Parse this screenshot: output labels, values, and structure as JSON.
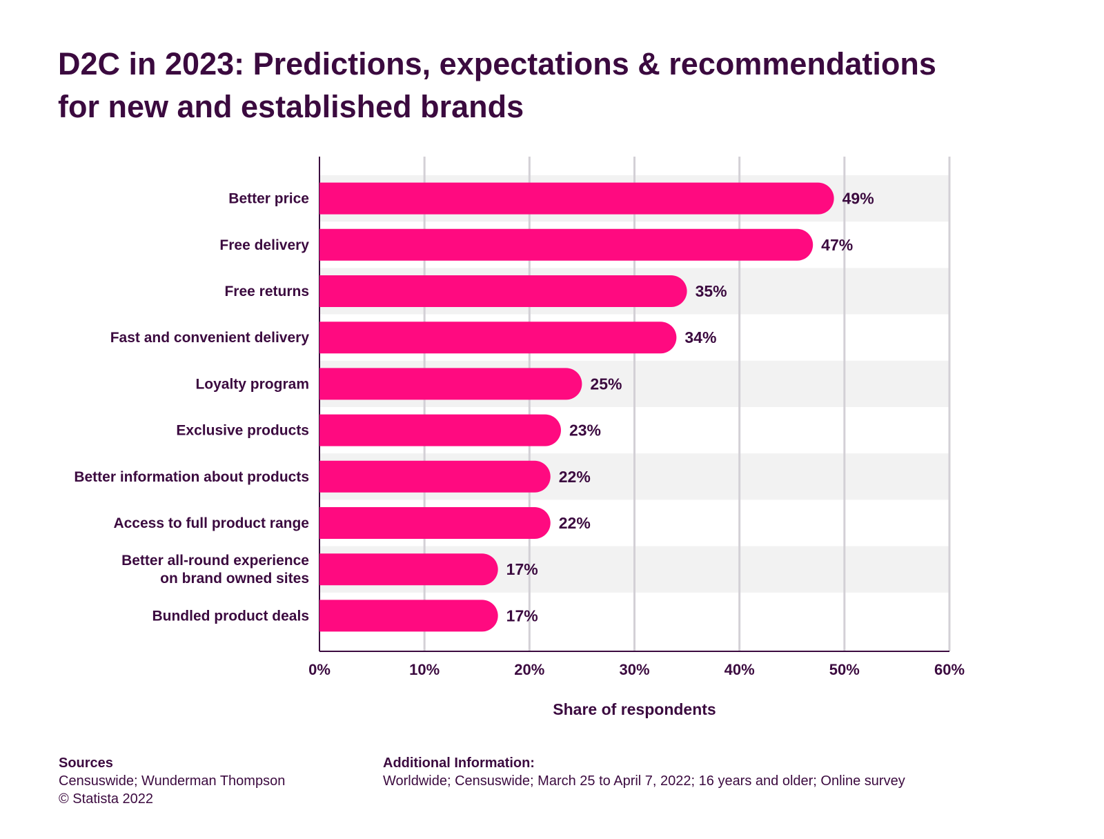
{
  "header": {
    "title_line1": "D2C in 2023: Predictions, expectations & recommendations",
    "title_line2": "for new and established brands"
  },
  "chart_data": {
    "type": "bar",
    "orientation": "horizontal",
    "categories": [
      "Better price",
      "Free delivery",
      "Free returns",
      "Fast and convenient delivery",
      "Loyalty program",
      "Exclusive products",
      "Better information about products",
      "Access to full product range",
      "Better all-round experience on brand owned sites",
      "Bundled product deals"
    ],
    "values": [
      49,
      47,
      35,
      34,
      25,
      23,
      22,
      22,
      17,
      17
    ],
    "value_labels": [
      "49%",
      "47%",
      "35%",
      "34%",
      "25%",
      "23%",
      "22%",
      "22%",
      "17%",
      "17%"
    ],
    "xlabel": "Share of respondents",
    "xlim": [
      0,
      60
    ],
    "xticks": [
      "0%",
      "10%",
      "20%",
      "30%",
      "40%",
      "50%",
      "60%"
    ],
    "grid": "vertical",
    "bar_color": "#ff0a80",
    "text_color": "#3b0a3f",
    "band_color": "#f2f2f2"
  },
  "footer": {
    "sources_heading": "Sources",
    "sources_line1": "Censuswide; Wunderman Thompson",
    "sources_line2": "© Statista 2022",
    "additional_heading": "Additional Information:",
    "additional_text": "Worldwide; Censuswide; March 25 to April 7, 2022; 16 years and older; Online survey"
  }
}
